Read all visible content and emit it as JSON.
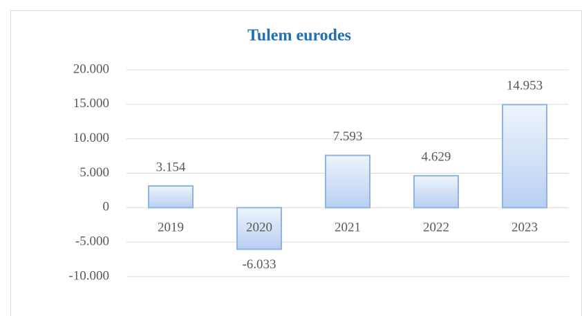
{
  "chart_data": {
    "type": "bar",
    "title": "Tulem eurodes",
    "categories": [
      "2019",
      "2020",
      "2021",
      "2022",
      "2023"
    ],
    "values": [
      3154,
      -6033,
      7593,
      4629,
      14953
    ],
    "value_labels": [
      "3.154",
      "-6.033",
      "7.593",
      "4.629",
      "14.953"
    ],
    "color": "#8eb4e3",
    "ylim": [
      -10000,
      20000
    ],
    "yticks": [
      {
        "value": -10000,
        "label": "-10.000"
      },
      {
        "value": -5000,
        "label": "-5.000"
      },
      0,
      {
        "value": 5000,
        "label": "5.000"
      },
      {
        "value": 10000,
        "label": "10.000"
      },
      {
        "value": 15000,
        "label": "15.000"
      },
      {
        "value": 20000,
        "label": "20.000"
      }
    ],
    "grid": true
  }
}
